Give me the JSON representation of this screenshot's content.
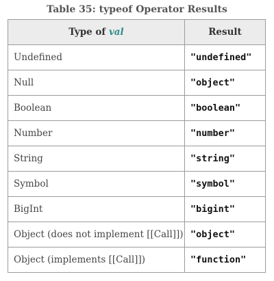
{
  "caption": "Table 35: typeof Operator Results",
  "header": {
    "type_prefix": "Type of ",
    "type_var": "val",
    "result": "Result"
  },
  "rows": [
    {
      "type": "Undefined",
      "result": "\"undefined\""
    },
    {
      "type": "Null",
      "result": "\"object\""
    },
    {
      "type": "Boolean",
      "result": "\"boolean\""
    },
    {
      "type": "Number",
      "result": "\"number\""
    },
    {
      "type": "String",
      "result": "\"string\""
    },
    {
      "type": "Symbol",
      "result": "\"symbol\""
    },
    {
      "type": "BigInt",
      "result": "\"bigint\""
    },
    {
      "type": "Object (does not implement [[Call]])",
      "result": "\"object\""
    },
    {
      "type": "Object (implements [[Call]])",
      "result": "\"function\""
    }
  ],
  "colors": {
    "variable_accent": "#2e8c87",
    "header_bg": "#ececec",
    "border": "#9a9a9a"
  }
}
